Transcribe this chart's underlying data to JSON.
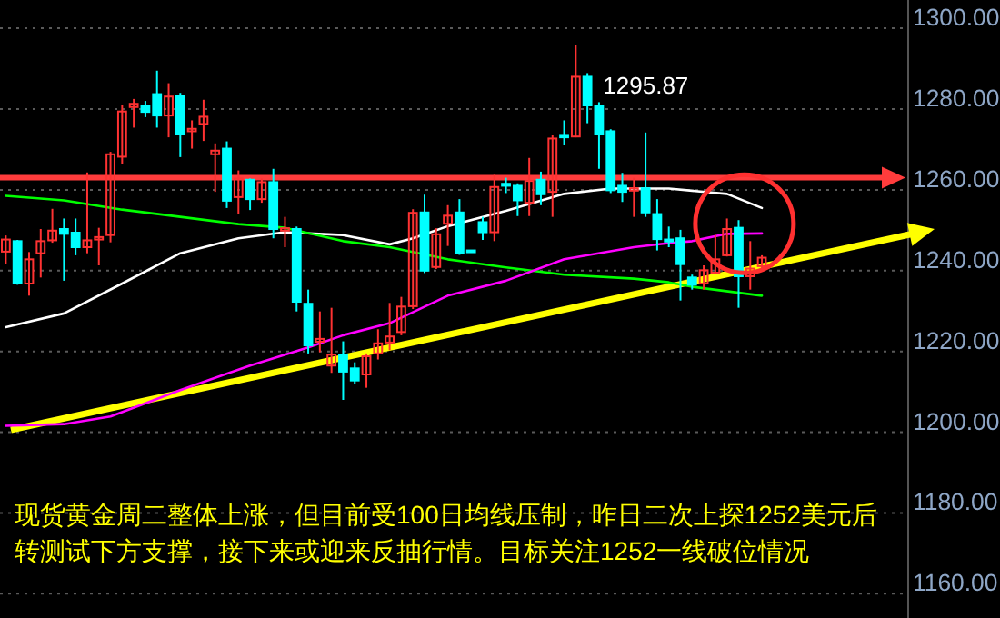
{
  "chart_data": {
    "type": "candlestick",
    "categories": [
      null,
      null,
      null,
      null,
      null,
      null,
      null,
      null,
      null,
      null,
      null,
      null,
      null,
      null,
      null,
      null,
      null,
      null,
      null,
      null,
      null,
      null,
      null,
      null,
      null,
      null,
      null,
      null,
      null,
      null,
      null,
      null,
      null,
      null,
      null,
      null,
      null,
      null,
      null,
      null,
      null,
      null,
      null,
      null,
      null,
      null,
      null,
      null,
      null,
      null,
      null,
      null,
      null,
      null,
      null,
      null,
      null,
      null,
      null,
      null,
      null,
      null,
      null,
      null,
      null,
      null,
      null,
      null,
      null,
      null,
      null,
      null,
      null,
      null,
      null,
      null,
      null,
      null
    ],
    "ohlc": [
      [
        1244.7,
        1248.7,
        1241.6,
        1247.7
      ],
      [
        1247.3,
        1247.6,
        1236.5,
        1236.8
      ],
      [
        1236.8,
        1244.6,
        1233.8,
        1242.8
      ],
      [
        1244.3,
        1250.3,
        1238.3,
        1247.3
      ],
      [
        1247.5,
        1255.3,
        1246.9,
        1249.9
      ],
      [
        1250.3,
        1252.9,
        1237.5,
        1249.1
      ],
      [
        1249.4,
        1252.9,
        1243.8,
        1245.8
      ],
      [
        1245.8,
        1264.3,
        1244.3,
        1247.5
      ],
      [
        1247.7,
        1250.6,
        1241.3,
        1248.3
      ],
      [
        1248.8,
        1269.4,
        1247.0,
        1268.8
      ],
      [
        1268.2,
        1281.0,
        1266.3,
        1279.4
      ],
      [
        1280.5,
        1282.5,
        1275.4,
        1281.3
      ],
      [
        1280.8,
        1282.0,
        1278.0,
        1279.3
      ],
      [
        1283.7,
        1289.5,
        1275.4,
        1278.4
      ],
      [
        1278.4,
        1286.4,
        1273.0,
        1283.1
      ],
      [
        1283.2,
        1284.0,
        1268.1,
        1273.9
      ],
      [
        1274.5,
        1277.2,
        1270.2,
        1275.1
      ],
      [
        1276.3,
        1282.3,
        1272.1,
        1278.1
      ],
      [
        1268.8,
        1271.5,
        1259.5,
        1269.7
      ],
      [
        1270.2,
        1272.0,
        1255.5,
        1257.3
      ],
      [
        1258.2,
        1264.8,
        1254.0,
        1262.8
      ],
      [
        1262.5,
        1262.8,
        1255.0,
        1257.7
      ],
      [
        1257.7,
        1262.8,
        1256.8,
        1261.9
      ],
      [
        1261.9,
        1265.2,
        1248.0,
        1250.3
      ],
      [
        1249.9,
        1253.3,
        1245.8,
        1250.5
      ],
      [
        1250.3,
        1250.9,
        1229.9,
        1232.3
      ],
      [
        1231.8,
        1235.3,
        1219.5,
        1221.5
      ],
      [
        1222.4,
        1229.9,
        1219.8,
        1223.1
      ],
      [
        1216.5,
        1230.8,
        1214.7,
        1219.2
      ],
      [
        1219.2,
        1222.5,
        1208.0,
        1215.0
      ],
      [
        1215.8,
        1217.3,
        1212.0,
        1212.8
      ],
      [
        1214.3,
        1219.5,
        1211.0,
        1218.8
      ],
      [
        1219.5,
        1225.5,
        1218.0,
        1222.0
      ],
      [
        1222.2,
        1232.0,
        1220.3,
        1223.7
      ],
      [
        1224.8,
        1233.5,
        1224.0,
        1231.1
      ],
      [
        1231.2,
        1255.2,
        1230.5,
        1254.3
      ],
      [
        1254.4,
        1258.8,
        1239.4,
        1240.0
      ],
      [
        1240.9,
        1250.5,
        1240.4,
        1249.0
      ],
      [
        1251.6,
        1256.2,
        1246.1,
        1253.6
      ],
      [
        1254.4,
        1257.7,
        1243.9,
        1244.3
      ],
      [
        1245.0,
        1245.0,
        1245.0,
        1245.0
      ],
      [
        1252.0,
        1253.3,
        1247.6,
        1249.5
      ],
      [
        1249.5,
        1263.7,
        1247.3,
        1260.7
      ],
      [
        1261.5,
        1263.0,
        1259.2,
        1261.0
      ],
      [
        1261.0,
        1261.6,
        1253.5,
        1257.4
      ],
      [
        1256.8,
        1267.9,
        1253.5,
        1262.2
      ],
      [
        1262.5,
        1264.5,
        1256.2,
        1258.9
      ],
      [
        1259.5,
        1273.5,
        1253.3,
        1272.7
      ],
      [
        1273.6,
        1277.2,
        1271.2,
        1273.0
      ],
      [
        1273.2,
        1295.87,
        1273.0,
        1288.0
      ],
      [
        1288.0,
        1288.9,
        1276.5,
        1280.9
      ],
      [
        1280.9,
        1281.7,
        1265.2,
        1273.9
      ],
      [
        1274.5,
        1275.0,
        1259.2,
        1259.9
      ],
      [
        1261.0,
        1264.2,
        1257.0,
        1259.5
      ],
      [
        1259.8,
        1263.0,
        1253.3,
        1260.4
      ],
      [
        1260.4,
        1274.2,
        1253.3,
        1254.4
      ],
      [
        1254.0,
        1257.7,
        1245.0,
        1247.8
      ],
      [
        1247.7,
        1250.9,
        1245.8,
        1247.2
      ],
      [
        1248.0,
        1250.1,
        1232.6,
        1241.6
      ],
      [
        1238.3,
        1239.0,
        1235.3,
        1236.5
      ],
      [
        1236.8,
        1241.3,
        1235.3,
        1240.1
      ],
      [
        1239.5,
        1248.8,
        1239.5,
        1242.8
      ],
      [
        1243.8,
        1252.9,
        1243.5,
        1250.3
      ],
      [
        1250.6,
        1252.5,
        1230.8,
        1238.6
      ],
      [
        1238.6,
        1247.3,
        1235.3,
        1240.5
      ],
      [
        1241.1,
        1243.8,
        1240.5,
        1243.2
      ],
      null,
      null,
      null,
      null,
      null,
      null,
      null,
      null,
      null,
      null,
      null,
      null
    ],
    "colors": [
      "#ff3232",
      "#00ffff",
      "#ff3232",
      "#ff3232",
      "#ff3232",
      "#00ffff",
      "#00ffff",
      "#ff3232",
      "#ff3232",
      "#ff3232",
      "#ff3232",
      "#ff3232",
      "#00ffff",
      "#00ffff",
      "#ff3232",
      "#00ffff",
      "#ff3232",
      "#ff3232",
      "#ff3232",
      "#00ffff",
      "#ff3232",
      "#00ffff",
      "#ff3232",
      "#00ffff",
      "#ff3232",
      "#00ffff",
      "#00ffff",
      "#ff3232",
      "#ff3232",
      "#00ffff",
      "#00ffff",
      "#ff3232",
      "#ff3232",
      "#ff3232",
      "#ff3232",
      "#ff3232",
      "#00ffff",
      "#ff3232",
      "#ff3232",
      "#00ffff",
      "#00ffff",
      "#00ffff",
      "#ff3232",
      "#00ffff",
      "#00ffff",
      "#ff3232",
      "#00ffff",
      "#ff3232",
      "#00ffff",
      "#ff3232",
      "#00ffff",
      "#00ffff",
      "#00ffff",
      "#00ffff",
      "#ff3232",
      "#00ffff",
      "#00ffff",
      "#00ffff",
      "#00ffff",
      "#00ffff",
      "#ff3232",
      "#ff3232",
      "#ff3232",
      "#00ffff",
      "#ff3232",
      "#ff3232",
      null,
      null,
      null,
      null,
      null,
      null,
      null,
      null,
      null,
      null,
      null,
      null
    ],
    "series": [
      {
        "type": "line",
        "color": "#ffffff",
        "values": [
          1226.0,
          null,
          null,
          null,
          null,
          1229.4,
          null,
          null,
          null,
          null,
          1236.8,
          null,
          null,
          null,
          null,
          1244.3,
          null,
          null,
          null,
          null,
          1248.0,
          null,
          null,
          null,
          1249.5,
          null,
          null,
          null,
          null,
          1248.8,
          null,
          null,
          null,
          1246.5,
          null,
          1248.0,
          null,
          null,
          1251.0,
          null,
          null,
          null,
          null,
          1254.8,
          null,
          null,
          null,
          null,
          1259.0,
          null,
          null,
          null,
          1260.3,
          null,
          null,
          null,
          null,
          1260.3,
          null,
          null,
          null,
          null,
          1259.0,
          null,
          null,
          1255.5,
          null,
          null,
          null,
          null,
          null,
          null,
          null,
          null,
          null,
          null,
          null,
          null
        ]
      },
      {
        "type": "line",
        "color": "#00ff00",
        "values": [
          1258.5,
          null,
          null,
          null,
          null,
          1257.4,
          null,
          null,
          null,
          null,
          1255.1,
          null,
          null,
          null,
          null,
          1253.3,
          null,
          null,
          null,
          null,
          1251.5,
          null,
          null,
          null,
          1250.6,
          null,
          null,
          null,
          null,
          1247.3,
          null,
          null,
          null,
          1245.8,
          null,
          null,
          null,
          null,
          1242.8,
          null,
          null,
          null,
          null,
          1240.8,
          null,
          null,
          null,
          null,
          1239.0,
          null,
          null,
          null,
          null,
          null,
          1238.0,
          null,
          null,
          1237.1,
          null,
          1236.0,
          null,
          null,
          null,
          null,
          null,
          1233.8,
          null,
          null,
          null,
          null,
          null,
          null,
          null,
          null,
          null,
          null,
          null,
          null
        ]
      },
      {
        "type": "line",
        "color": "#ff00ff",
        "values": [
          1201.6,
          null,
          null,
          null,
          null,
          1202.0,
          null,
          null,
          null,
          1203.9,
          null,
          null,
          null,
          null,
          null,
          1210.4,
          null,
          null,
          null,
          null,
          null,
          1216.5,
          null,
          null,
          null,
          null,
          1221.0,
          null,
          null,
          1224.0,
          null,
          null,
          null,
          1227.0,
          null,
          null,
          null,
          null,
          1233.8,
          null,
          null,
          null,
          null,
          1237.5,
          null,
          null,
          null,
          null,
          1242.8,
          null,
          null,
          null,
          null,
          null,
          1245.8,
          null,
          null,
          1246.8,
          null,
          1247.3,
          null,
          null,
          1249.1,
          null,
          null,
          1249.2,
          null,
          null,
          null,
          null,
          null,
          null,
          null,
          null,
          null,
          null,
          null,
          null
        ]
      }
    ],
    "ylim": [
      1154,
      1307
    ],
    "yticks": [
      {
        "value": 1160,
        "label": "1160.00"
      },
      {
        "value": 1180,
        "label": "1180.00"
      },
      {
        "value": 1200,
        "label": "1200.00"
      },
      {
        "value": 1220,
        "label": "1220.00"
      },
      {
        "value": 1240,
        "label": "1240.00"
      },
      {
        "value": 1260,
        "label": "1260.00"
      },
      {
        "value": 1280,
        "label": "1280.00"
      },
      {
        "value": 1300,
        "label": "1300.00"
      }
    ],
    "grid": "y",
    "ref_lines": [
      {
        "axis": "y",
        "value": 1263,
        "color": "#ff3c3c"
      }
    ],
    "annotations": [
      "1295.87",
      "现货黄金周二整体上涨，但目前受100日均线压制，昨日二次上探1252美元后转测试下方支撑，接下来或迎来反抽行情。目标关注1252一线破位情况"
    ]
  }
}
